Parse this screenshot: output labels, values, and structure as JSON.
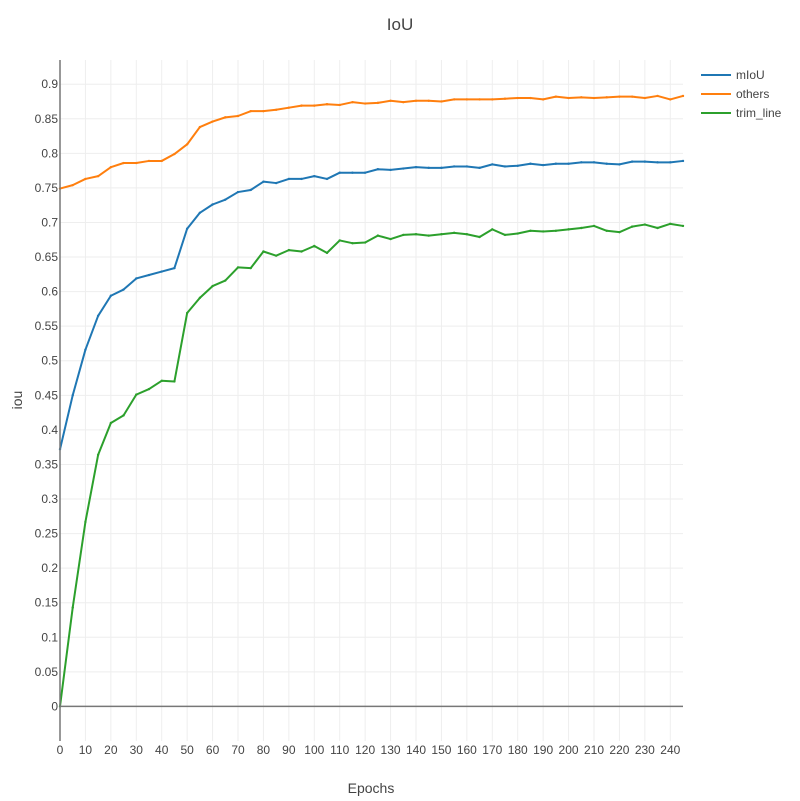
{
  "chart_data": {
    "type": "line",
    "title": "IoU",
    "xlabel": "Epochs",
    "ylabel": "iou",
    "xlim": [
      0,
      245
    ],
    "ylim": [
      -0.05,
      0.935
    ],
    "grid": true,
    "legend_position": "top-right",
    "x_ticks": [
      "0",
      "10",
      "20",
      "30",
      "40",
      "50",
      "60",
      "70",
      "80",
      "90",
      "100",
      "110",
      "120",
      "130",
      "140",
      "150",
      "160",
      "170",
      "180",
      "190",
      "200",
      "210",
      "220",
      "230",
      "240"
    ],
    "y_ticks": [
      "0",
      "0.05",
      "0.1",
      "0.15",
      "0.2",
      "0.25",
      "0.3",
      "0.35",
      "0.4",
      "0.45",
      "0.5",
      "0.55",
      "0.6",
      "0.65",
      "0.7",
      "0.75",
      "0.8",
      "0.85",
      "0.9"
    ],
    "x": [
      0,
      5,
      10,
      15,
      20,
      25,
      30,
      35,
      40,
      45,
      50,
      55,
      60,
      65,
      70,
      75,
      80,
      85,
      90,
      95,
      100,
      105,
      110,
      115,
      120,
      125,
      130,
      135,
      140,
      145,
      150,
      155,
      160,
      165,
      170,
      175,
      180,
      185,
      190,
      195,
      200,
      205,
      210,
      215,
      220,
      225,
      230,
      235,
      240,
      245
    ],
    "series": [
      {
        "name": "mIoU",
        "color": "#1f77b4",
        "values": [
          0.372,
          0.45,
          0.516,
          0.565,
          0.594,
          0.603,
          0.619,
          0.624,
          0.629,
          0.634,
          0.691,
          0.714,
          0.726,
          0.733,
          0.744,
          0.747,
          0.759,
          0.757,
          0.763,
          0.763,
          0.767,
          0.763,
          0.772,
          0.772,
          0.772,
          0.777,
          0.776,
          0.778,
          0.78,
          0.779,
          0.779,
          0.781,
          0.781,
          0.779,
          0.784,
          0.781,
          0.782,
          0.785,
          0.783,
          0.785,
          0.785,
          0.787,
          0.787,
          0.785,
          0.784,
          0.788,
          0.788,
          0.787,
          0.787,
          0.789
        ]
      },
      {
        "name": "others",
        "color": "#ff7f0e",
        "values": [
          0.749,
          0.754,
          0.763,
          0.767,
          0.78,
          0.786,
          0.786,
          0.789,
          0.789,
          0.799,
          0.813,
          0.838,
          0.846,
          0.852,
          0.854,
          0.861,
          0.861,
          0.863,
          0.866,
          0.869,
          0.869,
          0.871,
          0.87,
          0.874,
          0.872,
          0.873,
          0.876,
          0.874,
          0.876,
          0.876,
          0.875,
          0.878,
          0.878,
          0.878,
          0.878,
          0.879,
          0.88,
          0.88,
          0.878,
          0.882,
          0.88,
          0.881,
          0.88,
          0.881,
          0.882,
          0.882,
          0.88,
          0.883,
          0.878,
          0.883
        ]
      },
      {
        "name": "trim_line",
        "color": "#2ca02c",
        "values": [
          0.0,
          0.143,
          0.267,
          0.364,
          0.41,
          0.421,
          0.451,
          0.459,
          0.471,
          0.47,
          0.569,
          0.591,
          0.608,
          0.616,
          0.635,
          0.634,
          0.658,
          0.652,
          0.66,
          0.658,
          0.666,
          0.656,
          0.674,
          0.67,
          0.671,
          0.681,
          0.676,
          0.682,
          0.683,
          0.681,
          0.683,
          0.685,
          0.683,
          0.679,
          0.69,
          0.682,
          0.684,
          0.688,
          0.687,
          0.688,
          0.69,
          0.692,
          0.695,
          0.688,
          0.686,
          0.694,
          0.697,
          0.692,
          0.698,
          0.695
        ]
      }
    ]
  }
}
